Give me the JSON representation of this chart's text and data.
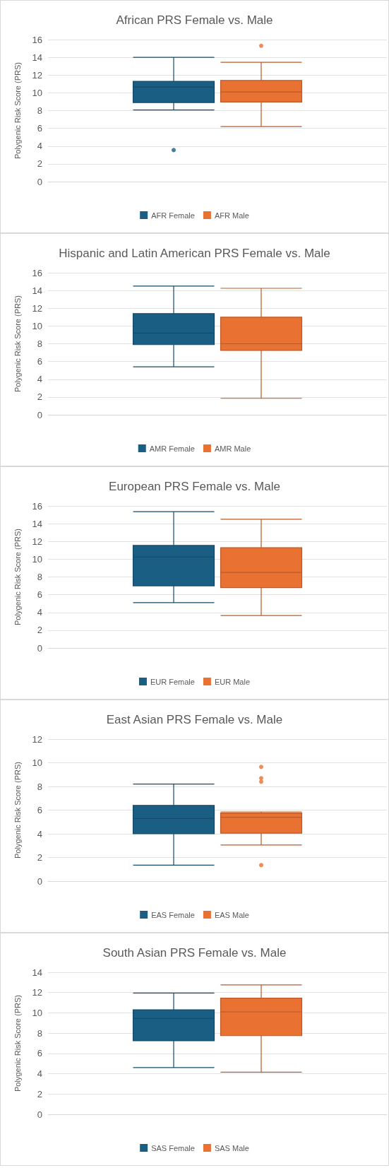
{
  "chart_data": [
    {
      "type": "box",
      "title": "African PRS Female vs. Male",
      "ylabel": "Polygenic Risk Score (PRS)",
      "categories": [
        null
      ],
      "ylim": [
        0,
        16
      ],
      "yticks": [
        0,
        2,
        4,
        6,
        8,
        10,
        12,
        14,
        16
      ],
      "grid": "y",
      "legend": "bottom",
      "tick_labels": "y",
      "series": [
        {
          "name": "AFR Female",
          "color": "#1a5e83",
          "boxes": [
            {
              "low": 8.07,
              "q1": 8.9,
              "median": 10.66,
              "q3": 11.3,
              "high": 14.0,
              "outliers": [
                3.55
              ]
            }
          ]
        },
        {
          "name": "AFR Male",
          "color": "#e97132",
          "boxes": [
            {
              "low": 6.2,
              "q1": 8.96,
              "median": 10.1,
              "q3": 11.4,
              "high": 13.45,
              "outliers": [
                15.3
              ]
            }
          ]
        }
      ]
    },
    {
      "type": "box",
      "title": "Hispanic and Latin American PRS Female vs. Male",
      "ylabel": "Polygenic Risk Score (PRS)",
      "categories": [
        null
      ],
      "ylim": [
        0,
        16
      ],
      "yticks": [
        0,
        2,
        4,
        6,
        8,
        10,
        12,
        14,
        16
      ],
      "grid": "y",
      "legend": "bottom",
      "tick_labels": "y",
      "series": [
        {
          "name": "AMR Female",
          "color": "#1a5e83",
          "boxes": [
            {
              "low": 5.4,
              "q1": 7.9,
              "median": 9.2,
              "q3": 11.4,
              "high": 14.5
            }
          ]
        },
        {
          "name": "AMR Male",
          "color": "#e97132",
          "boxes": [
            {
              "low": 1.85,
              "q1": 7.25,
              "median": 8.0,
              "q3": 11.0,
              "high": 14.25
            }
          ]
        }
      ]
    },
    {
      "type": "box",
      "title": "European PRS Female vs. Male",
      "ylabel": "Polygenic Risk Score (PRS)",
      "categories": [
        null
      ],
      "ylim": [
        0,
        16
      ],
      "yticks": [
        0,
        2,
        4,
        6,
        8,
        10,
        12,
        14,
        16
      ],
      "grid": "y",
      "legend": "bottom",
      "tick_labels": "y",
      "series": [
        {
          "name": "EUR Female",
          "color": "#1a5e83",
          "boxes": [
            {
              "low": 5.1,
              "q1": 7.0,
              "median": 10.25,
              "q3": 11.55,
              "high": 15.35
            }
          ]
        },
        {
          "name": "EUR Male",
          "color": "#e97132",
          "boxes": [
            {
              "low": 3.65,
              "q1": 6.8,
              "median": 8.5,
              "q3": 11.3,
              "high": 14.5
            }
          ]
        }
      ]
    },
    {
      "type": "box",
      "title": "East Asian PRS Female vs. Male",
      "ylabel": "Polygenic Risk Score (PRS)",
      "categories": [
        null
      ],
      "ylim": [
        0,
        12
      ],
      "yticks": [
        0,
        2,
        4,
        6,
        8,
        10,
        12
      ],
      "grid": "y",
      "legend": "bottom",
      "tick_labels": "y",
      "series": [
        {
          "name": "EAS Female",
          "color": "#1a5e83",
          "boxes": [
            {
              "low": 1.35,
              "q1": 4.0,
              "median": 5.3,
              "q3": 6.4,
              "high": 8.2
            }
          ]
        },
        {
          "name": "EAS Male",
          "color": "#e97132",
          "boxes": [
            {
              "low": 3.05,
              "q1": 4.05,
              "median": 5.4,
              "q3": 5.75,
              "high": 5.85,
              "outliers": [
                9.65,
                8.7,
                8.4,
                1.35
              ]
            }
          ]
        }
      ]
    },
    {
      "type": "box",
      "title": "South Asian PRS Female vs. Male",
      "ylabel": "Polygenic Risk Score (PRS)",
      "categories": [
        null
      ],
      "ylim": [
        0,
        14
      ],
      "yticks": [
        0,
        2,
        4,
        6,
        8,
        10,
        12,
        14
      ],
      "grid": "y",
      "legend": "bottom",
      "tick_labels": "y",
      "series": [
        {
          "name": "SAS Female",
          "color": "#1a5e83",
          "boxes": [
            {
              "low": 4.6,
              "q1": 7.25,
              "median": 9.45,
              "q3": 10.3,
              "high": 11.95
            }
          ]
        },
        {
          "name": "SAS Male",
          "color": "#e97132",
          "boxes": [
            {
              "low": 4.15,
              "q1": 7.75,
              "median": 10.1,
              "q3": 11.45,
              "high": 12.75
            }
          ]
        }
      ]
    }
  ]
}
